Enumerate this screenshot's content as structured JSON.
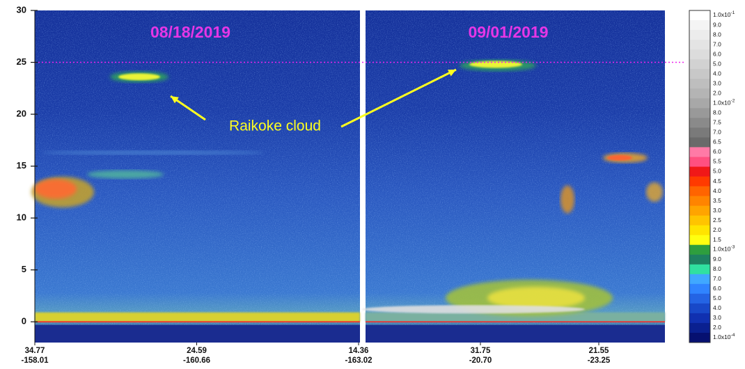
{
  "chart_data": {
    "type": "curtain",
    "ylim": [
      -2,
      30
    ],
    "yticks": [
      0,
      5,
      10,
      15,
      20,
      25,
      30
    ],
    "reference_line": 25,
    "reference_color": "#ee22ee",
    "annotation": "Raikoke cloud",
    "panels": [
      {
        "title": "08/18/2019",
        "xticks": [
          {
            "lat": "34.77",
            "lon": "-158.01"
          },
          {
            "lat": "24.59",
            "lon": "-160.66"
          },
          {
            "lat": "14.36",
            "lon": "-163.02"
          }
        ]
      },
      {
        "title": "09/01/2019",
        "xticks": [
          {
            "lat": "31.75",
            "lon": "-20.70"
          },
          {
            "lat": "21.55",
            "lon": "-23.25"
          }
        ]
      }
    ],
    "colorbar": {
      "labels": [
        {
          "base": "1.0x10",
          "exp": "-1"
        },
        "9.0",
        "8.0",
        "7.0",
        "6.0",
        "5.0",
        "4.0",
        "3.0",
        "2.0",
        {
          "base": "1.0x10",
          "exp": "-2"
        },
        "8.0",
        "7.5",
        "7.0",
        "6.5",
        "6.0",
        "5.5",
        "5.0",
        "4.5",
        "4.0",
        "3.5",
        "3.0",
        "2.5",
        "2.0",
        "1.5",
        {
          "base": "1.0x10",
          "exp": "-3"
        },
        "9.0",
        "8.0",
        "7.0",
        "6.0",
        "5.0",
        "4.0",
        "3.0",
        "2.0",
        {
          "base": "1.0x10",
          "exp": "-4"
        }
      ],
      "colors": [
        "#ffffff",
        "#f4f4f4",
        "#ececec",
        "#e4e4e4",
        "#dcdcdc",
        "#d2d2d2",
        "#c8c8c8",
        "#bebebe",
        "#b4b4b4",
        "#a8a8a8",
        "#999999",
        "#8a8a8a",
        "#7a7a7a",
        "#6a6a6a",
        "#ff7aa6",
        "#ff5080",
        "#f01818",
        "#ff3a00",
        "#ff6400",
        "#ff8400",
        "#ffa400",
        "#ffc400",
        "#ffe400",
        "#ffff10",
        "#2e9e3e",
        "#1e8060",
        "#30e0a0",
        "#40a8ff",
        "#3084ff",
        "#2464e4",
        "#1848c8",
        "#1030b0",
        "#0a2090",
        "#061070"
      ]
    }
  }
}
